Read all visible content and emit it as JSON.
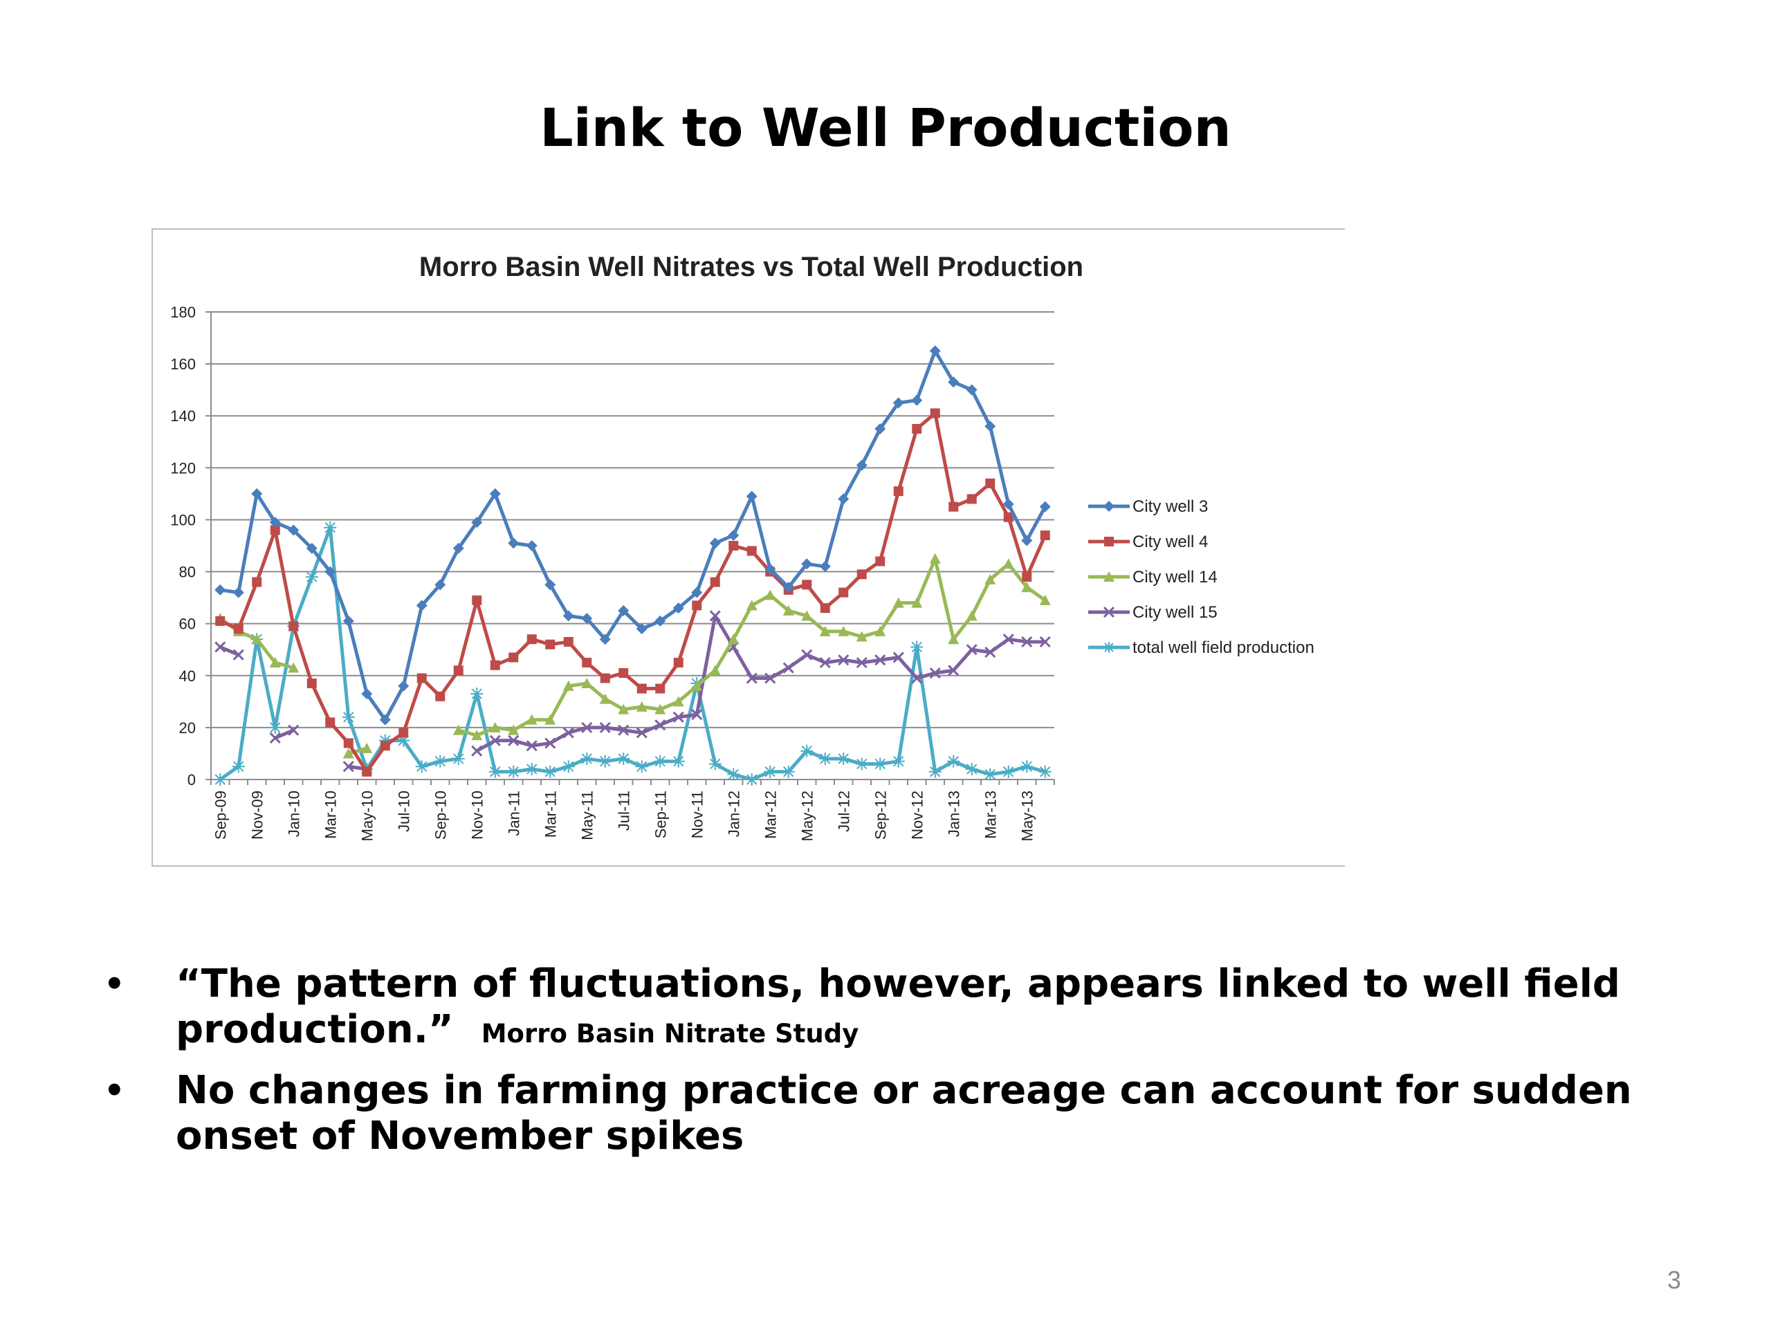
{
  "slide": {
    "title": "Link to Well Production",
    "page_number": "3",
    "bullets": [
      {
        "text": "“The pattern of fluctuations, however, appears linked to well field production.”",
        "citation": "Morro Basin Nitrate Study"
      },
      {
        "text": "No changes in farming practice or acreage can account for sudden onset of November spikes",
        "citation": ""
      }
    ]
  },
  "chart_data": {
    "type": "line",
    "title": "Morro Basin Well Nitrates vs Total Well Production",
    "xlabel": "",
    "ylabel": "",
    "ylim": [
      0,
      180
    ],
    "yticks": [
      0,
      20,
      40,
      60,
      80,
      100,
      120,
      140,
      160,
      180
    ],
    "grid": true,
    "legend_position": "right",
    "categories": [
      "Sep-09",
      "Oct-09",
      "Nov-09",
      "Dec-09",
      "Jan-10",
      "Feb-10",
      "Mar-10",
      "Apr-10",
      "May-10",
      "Jun-10",
      "Jul-10",
      "Aug-10",
      "Sep-10",
      "Oct-10",
      "Nov-10",
      "Dec-10",
      "Jan-11",
      "Feb-11",
      "Mar-11",
      "Apr-11",
      "May-11",
      "Jun-11",
      "Jul-11",
      "Aug-11",
      "Sep-11",
      "Oct-11",
      "Nov-11",
      "Dec-11",
      "Jan-12",
      "Feb-12",
      "Mar-12",
      "Apr-12",
      "May-12",
      "Jun-12",
      "Jul-12",
      "Aug-12",
      "Sep-12",
      "Oct-12",
      "Nov-12",
      "Dec-12",
      "Jan-13",
      "Feb-13",
      "Mar-13",
      "Apr-13",
      "May-13",
      "Jun-13"
    ],
    "tick_labels": [
      "Sep-09",
      "Nov-09",
      "Jan-10",
      "Mar-10",
      "May-10",
      "Jul-10",
      "Sep-10",
      "Nov-10",
      "Jan-11",
      "Mar-11",
      "May-11",
      "Jul-11",
      "Sep-11",
      "Nov-11",
      "Jan-12",
      "Mar-12",
      "May-12",
      "Jul-12",
      "Sep-12",
      "Nov-12",
      "Jan-13",
      "Mar-13",
      "May-13"
    ],
    "series": [
      {
        "name": "City well 3",
        "color": "#4a7ebb",
        "marker": "diamond",
        "values": [
          73,
          72,
          110,
          99,
          96,
          89,
          80,
          61,
          33,
          23,
          36,
          67,
          75,
          89,
          99,
          110,
          91,
          90,
          75,
          63,
          62,
          54,
          65,
          58,
          61,
          66,
          72,
          91,
          94,
          109,
          81,
          74,
          83,
          82,
          108,
          121,
          135,
          145,
          146,
          165,
          153,
          150,
          136,
          106,
          92,
          105
        ]
      },
      {
        "name": "City well 4",
        "color": "#be4b48",
        "marker": "square",
        "values": [
          61,
          58,
          76,
          96,
          59,
          37,
          22,
          14,
          3,
          13,
          18,
          39,
          32,
          42,
          69,
          44,
          47,
          54,
          52,
          53,
          45,
          39,
          41,
          35,
          35,
          45,
          67,
          76,
          90,
          88,
          80,
          73,
          75,
          66,
          72,
          79,
          84,
          111,
          135,
          141,
          105,
          108,
          114,
          101,
          78,
          94
        ]
      },
      {
        "name": "City well 14",
        "color": "#98b954",
        "marker": "triangle",
        "values": [
          62,
          57,
          54,
          45,
          43,
          null,
          null,
          10,
          12,
          null,
          null,
          null,
          null,
          19,
          17,
          20,
          19,
          23,
          23,
          36,
          37,
          31,
          27,
          28,
          27,
          30,
          36,
          42,
          54,
          67,
          71,
          65,
          63,
          57,
          57,
          55,
          57,
          68,
          68,
          85,
          54,
          63,
          77,
          83,
          74,
          69
        ]
      },
      {
        "name": "City well 15",
        "color": "#7d60a0",
        "marker": "x",
        "values": [
          51,
          48,
          null,
          16,
          19,
          null,
          null,
          5,
          4,
          null,
          null,
          null,
          null,
          null,
          11,
          15,
          15,
          13,
          14,
          18,
          20,
          20,
          19,
          18,
          21,
          24,
          25,
          63,
          51,
          39,
          39,
          43,
          48,
          45,
          46,
          45,
          46,
          47,
          39,
          41,
          42,
          50,
          49,
          54,
          53,
          53
        ]
      },
      {
        "name": "total well field production",
        "color": "#4bacc6",
        "marker": "star",
        "values": [
          0,
          5,
          54,
          20,
          59,
          78,
          97,
          24,
          4,
          15,
          15,
          5,
          7,
          8,
          33,
          3,
          3,
          4,
          3,
          5,
          8,
          7,
          8,
          5,
          7,
          7,
          37,
          6,
          2,
          0,
          3,
          3,
          11,
          8,
          8,
          6,
          6,
          7,
          51,
          3,
          7,
          4,
          2,
          3,
          5,
          3
        ]
      }
    ]
  }
}
